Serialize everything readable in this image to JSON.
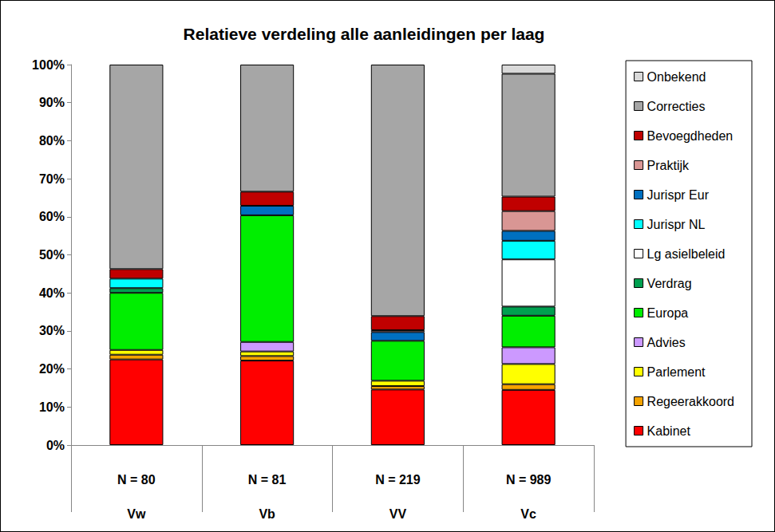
{
  "chart_data": {
    "type": "bar",
    "title": "Relatieve verdeling alle aanleidingen per laag",
    "stacked": true,
    "grid": false,
    "legend": "right",
    "data_labels": false,
    "categories": [
      "N = 80\nVw",
      "N = 81\nVb",
      "N = 219\nVV",
      "N = 989\nVc"
    ],
    "ylim": [
      0,
      100
    ],
    "yticks": [
      {
        "value": 0,
        "label": "0%"
      },
      {
        "value": 10,
        "label": "10%"
      },
      {
        "value": 20,
        "label": "20%"
      },
      {
        "value": 30,
        "label": "30%"
      },
      {
        "value": 40,
        "label": "40%"
      },
      {
        "value": 50,
        "label": "50%"
      },
      {
        "value": 60,
        "label": "60%"
      },
      {
        "value": 70,
        "label": "70%"
      },
      {
        "value": 80,
        "label": "80%"
      },
      {
        "value": 90,
        "label": "90%"
      },
      {
        "value": 100,
        "label": "100%"
      }
    ],
    "series": [
      {
        "name": "Kabinet",
        "color": "#ff0000",
        "values": [
          22.5,
          22.2,
          14.6,
          14.5
        ]
      },
      {
        "name": "Regeerakkoord",
        "color": "#f5a300",
        "values": [
          1.25,
          1.2,
          0.9,
          1.5
        ]
      },
      {
        "name": "Parlement",
        "color": "#ffff00",
        "values": [
          1.25,
          1.2,
          1.4,
          5.3
        ]
      },
      {
        "name": "Advies",
        "color": "#cc99ff",
        "values": [
          0,
          2.5,
          0,
          4.4
        ]
      },
      {
        "name": "Europa",
        "color": "#00ee00",
        "values": [
          15,
          33.3,
          10.5,
          8.3
        ]
      },
      {
        "name": "Verdrag",
        "color": "#00a050",
        "values": [
          1.25,
          0,
          0,
          2.4
        ]
      },
      {
        "name": "Lg asielbeleid",
        "color": "#ffffff",
        "values": [
          0,
          0,
          0,
          12.4
        ]
      },
      {
        "name": "Jurispr NL",
        "color": "#00ffff",
        "values": [
          2.5,
          0,
          0,
          4.9
        ]
      },
      {
        "name": "Jurispr Eur",
        "color": "#0070c0",
        "values": [
          0,
          2.5,
          2.3,
          2.6
        ]
      },
      {
        "name": "Praktijk",
        "color": "#d99694",
        "values": [
          0,
          0,
          0.5,
          5.2
        ]
      },
      {
        "name": "Bevoegdheden",
        "color": "#c00000",
        "values": [
          2.5,
          3.7,
          3.7,
          3.8
        ]
      },
      {
        "name": "Correcties",
        "color": "#a6a6a6",
        "values": [
          53.75,
          33.4,
          66.1,
          32.3
        ]
      },
      {
        "name": "Onbekend",
        "color": "#d9d9d9",
        "values": [
          0,
          0,
          0,
          2.4
        ]
      }
    ]
  }
}
